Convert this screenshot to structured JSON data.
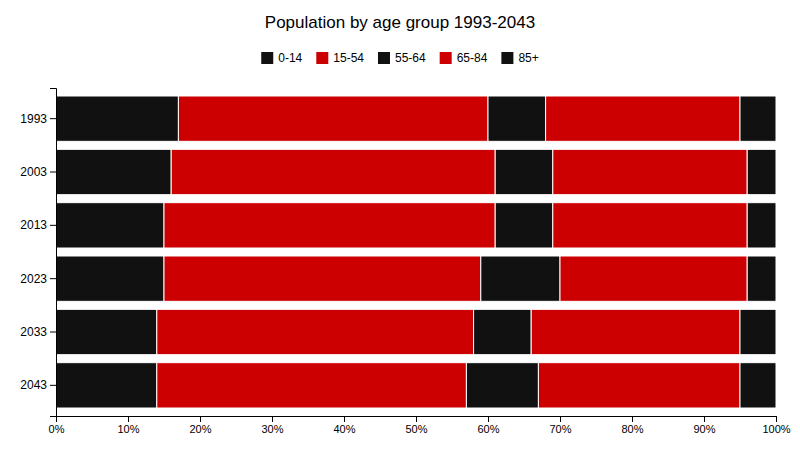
{
  "chart_data": {
    "type": "bar",
    "orientation": "horizontal",
    "stacked": true,
    "title": "Population by age group 1993-2043",
    "categories": [
      "1993",
      "2003",
      "2013",
      "2023",
      "2033",
      "2043"
    ],
    "series": [
      {
        "name": "0-14",
        "color": "#111111",
        "values": [
          17,
          16,
          15,
          15,
          14,
          14
        ]
      },
      {
        "name": "15-54",
        "color": "#cc0000",
        "values": [
          43,
          45,
          46,
          44,
          44,
          43
        ]
      },
      {
        "name": "55-64",
        "color": "#111111",
        "values": [
          8,
          8,
          8,
          11,
          8,
          10
        ]
      },
      {
        "name": "65-84",
        "color": "#cc0000",
        "values": [
          27,
          27,
          27,
          26,
          29,
          28
        ]
      },
      {
        "name": "85+",
        "color": "#111111",
        "values": [
          5,
          4,
          4,
          4,
          5,
          5
        ]
      }
    ],
    "xlim": [
      0,
      100
    ],
    "xticks": [
      {
        "value": 0,
        "label": "0%"
      },
      {
        "value": 10,
        "label": "10%"
      },
      {
        "value": 20,
        "label": "20%"
      },
      {
        "value": 30,
        "label": "30%"
      },
      {
        "value": 40,
        "label": "40%"
      },
      {
        "value": 50,
        "label": "50%"
      },
      {
        "value": 60,
        "label": "60%"
      },
      {
        "value": 70,
        "label": "70%"
      },
      {
        "value": 80,
        "label": "80%"
      },
      {
        "value": 90,
        "label": "90%"
      },
      {
        "value": 100,
        "label": "100%"
      }
    ],
    "grid": false,
    "legend": "top"
  }
}
